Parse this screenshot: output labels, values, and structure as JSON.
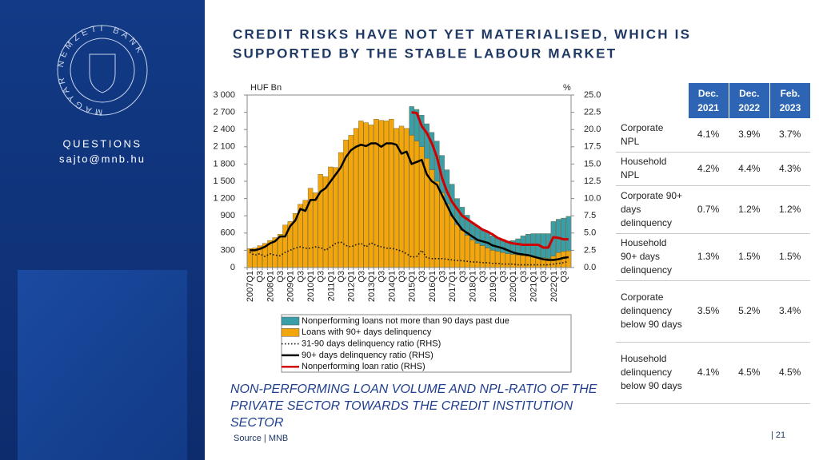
{
  "sidebar": {
    "logo_text": "MAGYAR NEMZETI BANK",
    "questions": "QUESTIONS",
    "email": "sajto@mnb.hu"
  },
  "title": [
    "CREDIT RISKS HAVE NOT YET MATERIALISED, WHICH IS",
    "SUPPORTED BY THE STABLE LABOUR MARKET"
  ],
  "chart_data": {
    "type": "bar",
    "y_axis_label": "HUF Bn",
    "y2_axis_label": "%",
    "categories": [
      "2007Q1",
      null,
      "Q3",
      null,
      "2008Q1",
      null,
      "Q3",
      null,
      "2009Q1",
      null,
      "Q3",
      null,
      "2010Q1",
      null,
      "Q3",
      null,
      "2011Q1",
      null,
      "Q3",
      null,
      "2012Q1",
      null,
      "Q3",
      null,
      "2013Q1",
      null,
      "Q3",
      null,
      "2014Q1",
      null,
      "Q3",
      null,
      "2015Q1",
      null,
      "Q3",
      null,
      "2016Q1",
      null,
      "Q3",
      null,
      "2017Q1",
      null,
      "Q3",
      null,
      "2018Q1",
      null,
      "Q3",
      null,
      "2019Q1",
      null,
      "Q3",
      null,
      "2020Q1",
      null,
      "Q3",
      null,
      "2021Q1",
      null,
      "Q3",
      null,
      "2022Q1",
      null,
      "Q3",
      null
    ],
    "ylim": [
      0,
      3000
    ],
    "yticks": [
      0,
      300,
      600,
      900,
      {
        "value": 1200,
        "label": "1 200"
      },
      {
        "value": 1500,
        "label": "1 500"
      },
      {
        "value": 1800,
        "label": "1 800"
      },
      {
        "value": 2100,
        "label": "2 100"
      },
      {
        "value": 2400,
        "label": "2 400"
      },
      {
        "value": 2700,
        "label": "2 700"
      },
      {
        "value": 3000,
        "label": "3 000"
      }
    ],
    "y2lim": [
      0,
      25
    ],
    "y2ticks": [
      {
        "value": 0,
        "label": "0.0"
      },
      {
        "value": 2.5,
        "label": "2.5"
      },
      {
        "value": 5,
        "label": "5.0"
      },
      {
        "value": 7.5,
        "label": "7.5"
      },
      {
        "value": 10,
        "label": "10.0"
      },
      {
        "value": 12.5,
        "label": "12.5"
      },
      {
        "value": 15,
        "label": "15.0"
      },
      {
        "value": 17.5,
        "label": "17.5"
      },
      {
        "value": 20,
        "label": "20.0"
      },
      {
        "value": 22.5,
        "label": "22.5"
      },
      {
        "value": 25,
        "label": "25.0"
      }
    ],
    "grid": false,
    "series": [
      {
        "name": "Nonperforming loans not more than 90 days past due",
        "type": "bar",
        "color": "#3a9ea8",
        "values": [
          null,
          null,
          null,
          null,
          null,
          null,
          null,
          null,
          null,
          null,
          null,
          null,
          null,
          null,
          null,
          null,
          null,
          null,
          null,
          null,
          null,
          null,
          null,
          null,
          null,
          null,
          null,
          null,
          null,
          null,
          null,
          null,
          500,
          550,
          550,
          600,
          650,
          700,
          650,
          600,
          550,
          450,
          400,
          350,
          300,
          300,
          280,
          270,
          250,
          240,
          230,
          220,
          240,
          280,
          340,
          380,
          400,
          410,
          420,
          430,
          600,
          580,
          580,
          600
        ]
      },
      {
        "name": "Loans with 90+ days delinquency",
        "type": "bar",
        "color": "#f2a60c",
        "values": [
          330,
          340,
          380,
          420,
          470,
          520,
          580,
          740,
          800,
          940,
          1100,
          1170,
          1380,
          1300,
          1620,
          1580,
          1750,
          1740,
          2000,
          2220,
          2300,
          2420,
          2550,
          2520,
          2480,
          2580,
          2560,
          2550,
          2580,
          2420,
          2460,
          2420,
          2300,
          2200,
          2100,
          1900,
          1700,
          1500,
          1300,
          1100,
          900,
          750,
          650,
          560,
          480,
          420,
          380,
          340,
          300,
          280,
          260,
          240,
          230,
          220,
          210,
          200,
          190,
          180,
          170,
          160,
          200,
          260,
          280,
          290
        ]
      },
      {
        "name": "31-90 days delinquency ratio (RHS)",
        "type": "line",
        "axis": "y2",
        "color": "#111111",
        "dash": "dotted",
        "values": [
          2.2,
          1.8,
          2.0,
          1.6,
          2.0,
          1.8,
          1.7,
          2.2,
          2.5,
          2.8,
          3.0,
          2.8,
          2.8,
          3.0,
          2.9,
          2.5,
          3.0,
          3.5,
          3.7,
          3.2,
          3.0,
          3.3,
          3.5,
          3.0,
          3.6,
          3.2,
          3.0,
          2.8,
          2.8,
          2.6,
          2.4,
          2.0,
          1.5,
          1.6,
          2.5,
          1.4,
          1.3,
          1.3,
          1.3,
          1.2,
          1.1,
          1.0,
          1.0,
          0.9,
          0.8,
          0.8,
          0.7,
          0.7,
          0.6,
          0.6,
          0.5,
          0.5,
          0.5,
          0.4,
          0.4,
          0.4,
          0.4,
          0.4,
          0.4,
          0.4,
          0.5,
          0.6,
          0.7,
          0.9
        ]
      },
      {
        "name": "90+ days delinquency ratio (RHS)",
        "type": "line",
        "axis": "y2",
        "color": "#000000",
        "dash": "solid",
        "values": [
          2.5,
          2.5,
          2.7,
          3.0,
          3.5,
          3.8,
          4.5,
          4.5,
          6.0,
          6.8,
          8.5,
          8.2,
          9.8,
          9.8,
          11.0,
          11.5,
          12.5,
          13.5,
          14.5,
          16.0,
          17.0,
          17.5,
          17.8,
          17.6,
          18.0,
          18.0,
          17.5,
          18.0,
          18.0,
          17.8,
          16.5,
          16.8,
          15.0,
          15.3,
          15.6,
          13.5,
          12.5,
          12.0,
          10.5,
          9.0,
          7.5,
          6.5,
          5.5,
          5.0,
          4.5,
          4.0,
          3.8,
          3.6,
          3.2,
          3.0,
          2.8,
          2.5,
          2.2,
          2.0,
          1.9,
          1.8,
          1.6,
          1.4,
          1.2,
          1.1,
          1.1,
          1.2,
          1.4,
          1.5
        ]
      },
      {
        "name": "Nonperforming loan ratio (RHS)",
        "type": "line",
        "axis": "y2",
        "color": "#d00000",
        "dash": "solid",
        "values": [
          null,
          null,
          null,
          null,
          null,
          null,
          null,
          null,
          null,
          null,
          null,
          null,
          null,
          null,
          null,
          null,
          null,
          null,
          null,
          null,
          null,
          null,
          null,
          null,
          null,
          null,
          null,
          null,
          null,
          null,
          null,
          null,
          22.5,
          22.4,
          20.5,
          19.5,
          18.0,
          16.0,
          13.0,
          11.0,
          9.5,
          8.5,
          7.5,
          7.0,
          6.5,
          6.0,
          5.5,
          5.2,
          4.8,
          4.3,
          4.0,
          3.7,
          3.5,
          3.4,
          3.3,
          3.3,
          3.3,
          3.3,
          2.9,
          2.9,
          4.4,
          4.3,
          4.1,
          4.1
        ]
      }
    ]
  },
  "caption": "NON-PERFORMING LOAN VOLUME AND NPL-RATIO OF THE PRIVATE SECTOR TOWARDS THE CREDIT INSTITUTION SECTOR",
  "source": "Source | MNB",
  "page_number": "| 21",
  "table": {
    "header": [
      "Dec. 2021",
      "Dec. 2022",
      "Feb. 2023"
    ],
    "rows": [
      [
        "Corporate NPL",
        "4.1%",
        "3.9%",
        "3.7%"
      ],
      [
        "Household NPL",
        "4.2%",
        "4.4%",
        "4.3%"
      ],
      [
        "Corporate 90+ days delinquency",
        "0.7%",
        "1.2%",
        "1.2%"
      ],
      [
        "Household 90+ days delinquency",
        "1.3%",
        "1.5%",
        "1.5%"
      ],
      [
        "Corporate delinquency below 90 days",
        "3.5%",
        "5.2%",
        "3.4%"
      ],
      [
        "Household delinquency below 90 days",
        "4.1%",
        "4.5%",
        "4.5%"
      ]
    ]
  }
}
